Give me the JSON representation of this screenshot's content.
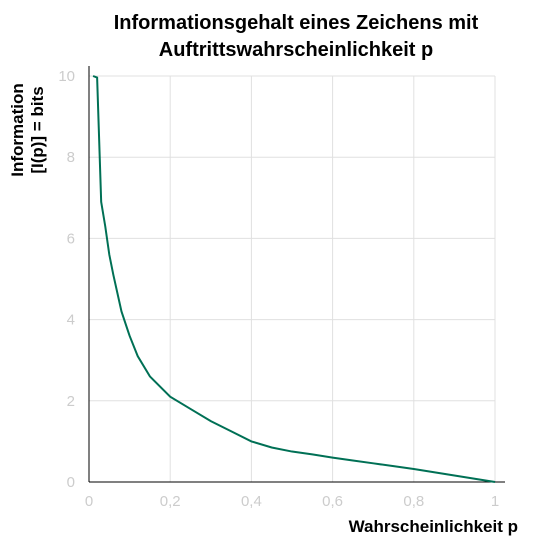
{
  "chart_data": {
    "type": "line",
    "title_lines": [
      "Informationsgehalt eines Zeichens mit",
      "Auftrittswahrscheinlichkeit p"
    ],
    "xlabel": "Wahrscheinlichkeit p",
    "ylabel_lines": [
      "Information",
      "[I(p)] = bits"
    ],
    "xlim": [
      0,
      1
    ],
    "ylim": [
      0,
      10
    ],
    "x_ticks": [
      0,
      0.2,
      0.4,
      0.6,
      0.8,
      1
    ],
    "x_tick_labels": [
      "0",
      "0,2",
      "0,4",
      "0,6",
      "0,8",
      "1"
    ],
    "y_ticks": [
      0,
      2,
      4,
      6,
      8,
      10
    ],
    "y_tick_labels": [
      "0",
      "2",
      "4",
      "6",
      "8",
      "10"
    ],
    "grid": true,
    "series": [
      {
        "color": "#007055",
        "x": [
          0.01,
          0.02,
          0.03,
          0.04,
          0.05,
          0.06,
          0.08,
          0.1,
          0.12,
          0.15,
          0.2,
          0.25,
          0.3,
          0.35,
          0.4,
          0.45,
          0.5,
          0.55,
          0.6,
          0.65,
          0.7,
          0.75,
          0.8,
          0.85,
          0.9,
          0.95,
          1.0
        ],
        "y": [
          10.0,
          9.96,
          6.9,
          6.3,
          5.6,
          5.1,
          4.2,
          3.6,
          3.1,
          2.6,
          2.1,
          1.8,
          1.5,
          1.25,
          1.0,
          0.85,
          0.75,
          0.68,
          0.6,
          0.53,
          0.46,
          0.39,
          0.32,
          0.24,
          0.16,
          0.08,
          0.0
        ]
      }
    ]
  }
}
